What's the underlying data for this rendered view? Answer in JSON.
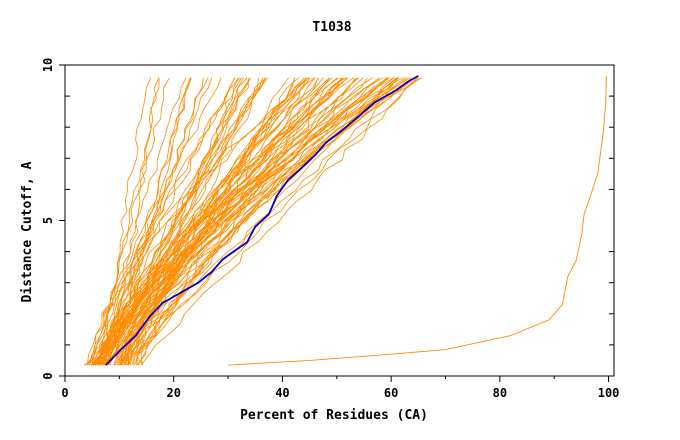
{
  "chart_data": {
    "type": "line",
    "title": "T1038",
    "xlabel": "Percent of Residues (CA)",
    "ylabel": "Distance Cutoff, A",
    "xlim": [
      0,
      101
    ],
    "ylim": [
      0,
      10
    ],
    "xticks": [
      0,
      20,
      40,
      60,
      80,
      100
    ],
    "yticks": [
      0,
      5,
      10
    ],
    "grid": false,
    "legend": "none",
    "colors": {
      "models": "#ff8c00",
      "highlight": "#0000cc",
      "axes": "#000000"
    },
    "highlight_series": {
      "x": [
        7.5,
        10,
        13,
        15.5,
        18,
        21,
        24.5,
        27,
        29,
        31,
        33.5,
        35,
        37.5,
        39,
        41,
        43,
        46,
        48,
        51,
        53,
        55,
        57,
        59,
        61,
        63,
        65
      ],
      "y": [
        0.35,
        0.8,
        1.3,
        1.9,
        2.35,
        2.65,
        3.0,
        3.35,
        3.75,
        4.0,
        4.3,
        4.8,
        5.2,
        5.8,
        6.3,
        6.6,
        7.1,
        7.5,
        7.9,
        8.2,
        8.5,
        8.8,
        9.0,
        9.2,
        9.45,
        9.65
      ]
    },
    "outlier_series": {
      "x": [
        30,
        45,
        60,
        70,
        82,
        89,
        91.5,
        92.5,
        94,
        95,
        95.5,
        96.5,
        98,
        99,
        99.5,
        99.6
      ],
      "y": [
        0.35,
        0.5,
        0.7,
        0.85,
        1.3,
        1.8,
        2.3,
        3.2,
        3.7,
        4.5,
        5.2,
        5.7,
        6.5,
        7.8,
        8.8,
        9.65
      ]
    }
  }
}
